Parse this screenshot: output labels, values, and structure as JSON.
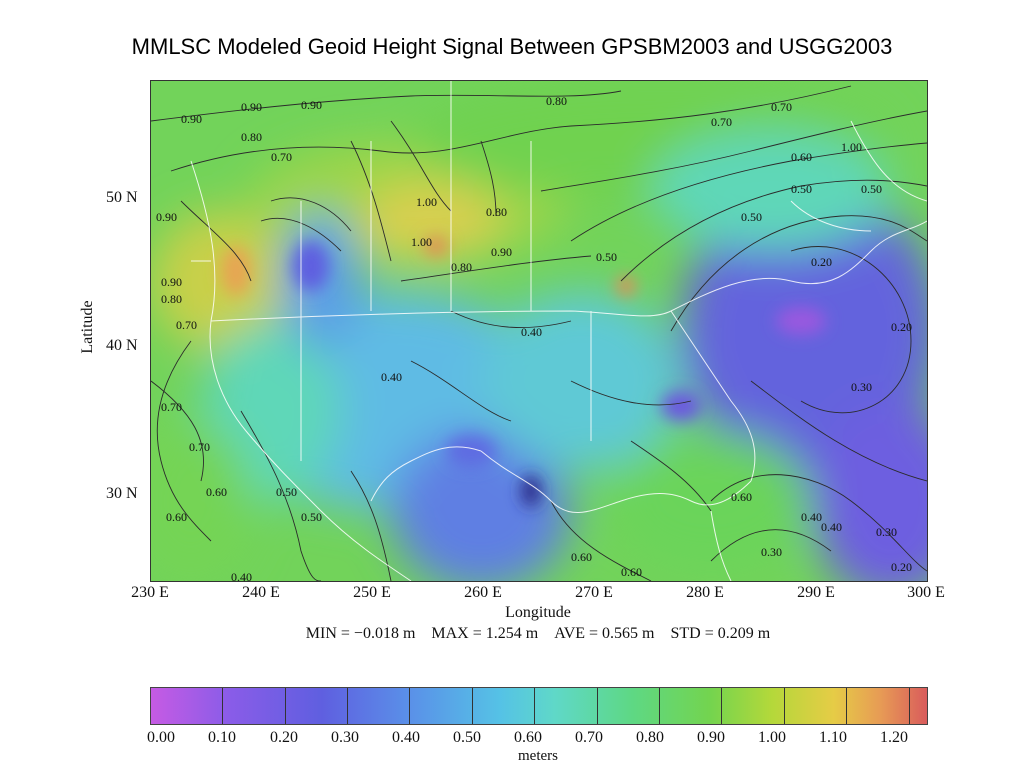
{
  "title": "MMLSC Modeled Geoid Height Signal Between GPSBM2003 and USGG2003",
  "map": {
    "y_axis_label": "Latitude",
    "x_axis_label": "Longitude",
    "y_ticks": [
      "50 N",
      "40 N",
      "30 N"
    ],
    "x_ticks": [
      "230 E",
      "240 E",
      "250 E",
      "260 E",
      "270 E",
      "280 E",
      "290 E",
      "300 E"
    ],
    "contour_labels": [
      "0.90",
      "0.80",
      "0.70",
      "0.60",
      "0.50",
      "0.40",
      "0.30",
      "0.20",
      "1.00"
    ]
  },
  "stats": {
    "min": "MIN = −0.018 m",
    "max": "MAX = 1.254 m",
    "ave": "AVE = 0.565 m",
    "std": "STD = 0.209 m"
  },
  "colorbar": {
    "ticks": [
      "0.00",
      "0.10",
      "0.20",
      "0.30",
      "0.40",
      "0.50",
      "0.60",
      "0.70",
      "0.80",
      "0.90",
      "1.00",
      "1.10",
      "1.20"
    ],
    "unit": "meters",
    "colors": [
      "#c65be4",
      "#8a5ce8",
      "#5f5fe0",
      "#5a8fe8",
      "#55c2e6",
      "#5fd8c8",
      "#5ed884",
      "#73d44f",
      "#b4d83a",
      "#e6cc46",
      "#e79b55",
      "#d95c5c"
    ]
  }
}
